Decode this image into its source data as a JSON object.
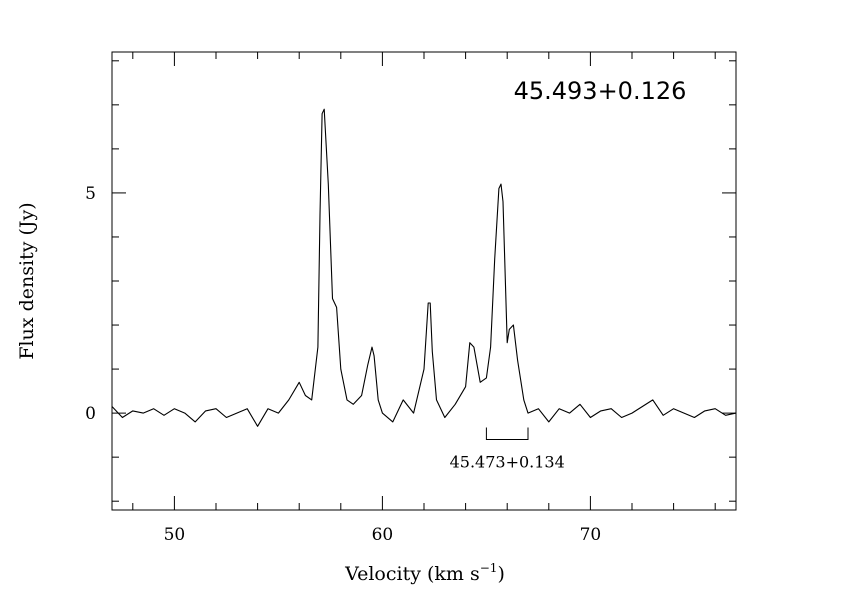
{
  "chart_data": {
    "type": "line",
    "title": "45.493+0.126",
    "xlabel": "Velocity (km s",
    "xlabel_sup": "−1",
    "xlabel_close": ")",
    "ylabel": "Flux density (Jy)",
    "xlim": [
      47,
      77
    ],
    "ylim": [
      -2.2,
      8.2
    ],
    "x_ticks": [
      "50",
      "60",
      "70"
    ],
    "y_ticks": [
      "0",
      "5"
    ],
    "grid": false,
    "legend": "none",
    "line_color": "#000000",
    "annotation": {
      "label": "45.473+0.134",
      "velocity_range": [
        65,
        67
      ],
      "y": -0.6
    },
    "series": [
      {
        "x": [
          47.0,
          47.5,
          48.0,
          48.5,
          49.0,
          49.5,
          50.0,
          50.5,
          51.0,
          51.5,
          52.0,
          52.5,
          53.0,
          53.5,
          54.0,
          54.5,
          55.0,
          55.5,
          56.0,
          56.3,
          56.6,
          56.9,
          57.0,
          57.1,
          57.2,
          57.4,
          57.6,
          57.8,
          58.0,
          58.3,
          58.6,
          59.0,
          59.3,
          59.5,
          59.6,
          59.8,
          60.0,
          60.5,
          61.0,
          61.5,
          62.0,
          62.2,
          62.3,
          62.4,
          62.6,
          63.0,
          63.5,
          64.0,
          64.2,
          64.4,
          64.7,
          65.0,
          65.2,
          65.4,
          65.6,
          65.7,
          65.8,
          66.0,
          66.1,
          66.3,
          66.5,
          66.8,
          67.0,
          67.5,
          68.0,
          68.5,
          69.0,
          69.5,
          70.0,
          70.5,
          71.0,
          71.5,
          72.0,
          72.5,
          73.0,
          73.5,
          74.0,
          74.5,
          75.0,
          75.5,
          76.0,
          76.5,
          77.0
        ],
        "y": [
          0.15,
          -0.1,
          0.05,
          0.0,
          0.1,
          -0.05,
          0.1,
          0.0,
          -0.2,
          0.05,
          0.1,
          -0.1,
          0.0,
          0.1,
          -0.3,
          0.1,
          0.0,
          0.3,
          0.7,
          0.4,
          0.3,
          1.5,
          4.5,
          6.8,
          6.9,
          5.2,
          2.6,
          2.4,
          1.0,
          0.3,
          0.2,
          0.4,
          1.1,
          1.5,
          1.3,
          0.3,
          0.0,
          -0.2,
          0.3,
          0.0,
          1.0,
          2.5,
          2.5,
          1.4,
          0.3,
          -0.1,
          0.2,
          0.6,
          1.6,
          1.5,
          0.7,
          0.8,
          1.5,
          3.5,
          5.1,
          5.2,
          4.8,
          1.6,
          1.9,
          2.0,
          1.2,
          0.3,
          0.0,
          0.1,
          -0.2,
          0.1,
          0.0,
          0.2,
          -0.1,
          0.05,
          0.1,
          -0.1,
          0.0,
          0.15,
          0.3,
          -0.05,
          0.1,
          0.0,
          -0.1,
          0.05,
          0.1,
          -0.05,
          0.0
        ]
      }
    ]
  }
}
